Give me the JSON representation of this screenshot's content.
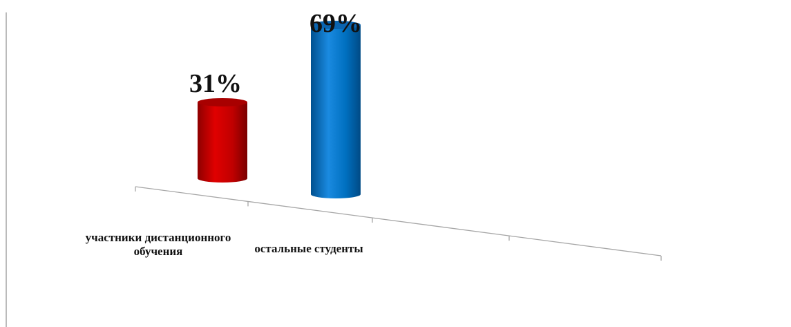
{
  "chart_data": {
    "type": "bar",
    "categories": [
      "участники дистанционного обучения",
      "остальные студенты"
    ],
    "category_lines": [
      [
        "участники дистанционного",
        "обучения"
      ],
      [
        "остальные студенты"
      ]
    ],
    "values": [
      31,
      69
    ],
    "data_labels": [
      "31%",
      "69%"
    ],
    "colors": [
      "#c00000",
      "#0070c0"
    ],
    "title": "",
    "xlabel": "",
    "ylabel": "",
    "ylim": [
      0,
      100
    ],
    "grid": false,
    "legend": "none"
  }
}
